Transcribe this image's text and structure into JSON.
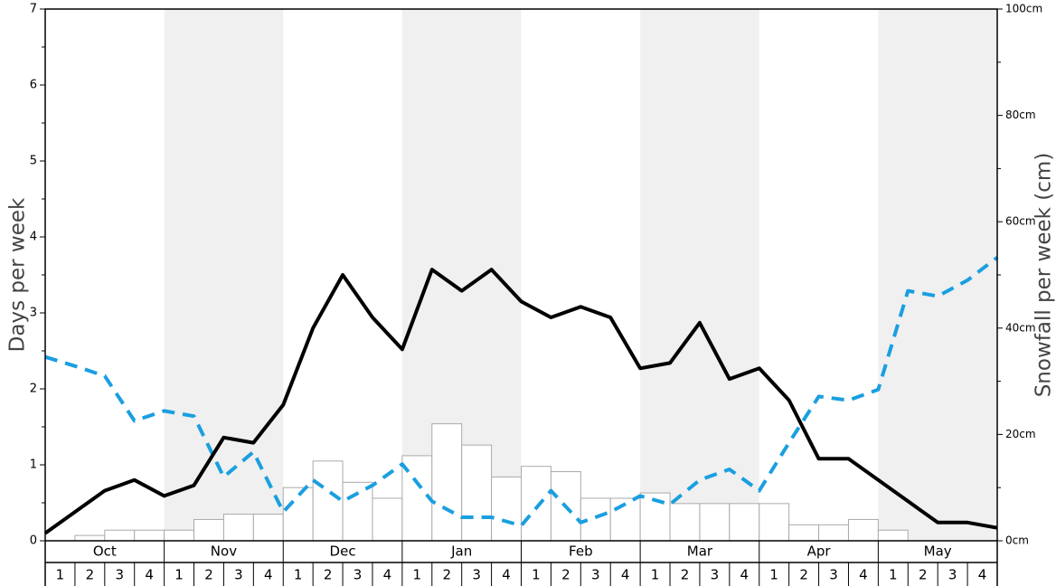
{
  "chart_data": {
    "type": "bar",
    "ylabel_left": "Days per week",
    "ylabel_right": "Snowfall per week (cm)",
    "y_left_range": [
      0,
      7
    ],
    "y_left_ticks": [
      "0",
      "1",
      "2",
      "3",
      "4",
      "5",
      "6",
      "7"
    ],
    "y_right_range": [
      0,
      100
    ],
    "y_right_ticks": [
      "0cm",
      "20cm",
      "40cm",
      "60cm",
      "80cm",
      "100cm"
    ],
    "months": [
      "Oct",
      "Nov",
      "Dec",
      "Jan",
      "Feb",
      "Mar",
      "Apr",
      "May"
    ],
    "weeks": [
      "1",
      "2",
      "3",
      "4"
    ],
    "colors": {
      "shade": "#f0f0f0",
      "bar_fill": "#ffffff",
      "bar_stroke": "#aaaaaa",
      "solid_line": "#000000",
      "dashed_line": "#1a9fe0"
    },
    "series": [
      {
        "kind": "bars",
        "axis": "right",
        "values": [
          0,
          1,
          2,
          2,
          2,
          4,
          5,
          5,
          10,
          15,
          11,
          8,
          16,
          22,
          18,
          12,
          14,
          13,
          8,
          8,
          9,
          7,
          7,
          7,
          7,
          3,
          3,
          4,
          2,
          0,
          0,
          0
        ]
      },
      {
        "kind": "line-solid",
        "axis": "left",
        "values": [
          0.1,
          0.38,
          0.66,
          0.8,
          0.59,
          0.73,
          1.36,
          1.29,
          1.79,
          2.8,
          3.5,
          2.94,
          2.52,
          3.57,
          3.29,
          3.57,
          3.15,
          2.94,
          3.08,
          2.94,
          2.27,
          2.34,
          2.87,
          2.13,
          2.27,
          1.85,
          1.08,
          1.08,
          0.8,
          0.52,
          0.24,
          0.24,
          0.17
        ]
      },
      {
        "kind": "line-dashed",
        "axis": "left",
        "values": [
          2.42,
          2.3,
          2.17,
          1.58,
          1.71,
          1.64,
          0.84,
          1.17,
          0.38,
          0.8,
          0.52,
          0.73,
          1.01,
          0.52,
          0.31,
          0.31,
          0.2,
          0.66,
          0.24,
          0.38,
          0.59,
          0.48,
          0.8,
          0.94,
          0.66,
          1.29,
          1.9,
          1.85,
          1.99,
          3.29,
          3.22,
          3.43,
          3.73
        ]
      }
    ]
  }
}
